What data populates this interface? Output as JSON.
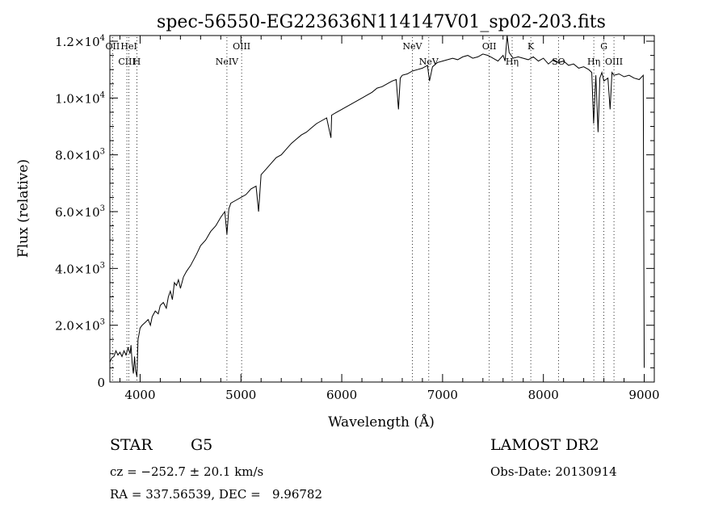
{
  "chart_data": {
    "type": "line",
    "title": "spec-56550-EG223636N114147V01_sp02-203.fits",
    "xlabel": "Wavelength (Å)",
    "ylabel": "Flux (relative)",
    "xlim": [
      3700,
      9100
    ],
    "ylim": [
      0,
      12200
    ],
    "x_ticks": [
      4000,
      5000,
      6000,
      7000,
      8000,
      9000
    ],
    "x_tick_labels": [
      "4000",
      "5000",
      "6000",
      "7000",
      "8000",
      "9000"
    ],
    "y_ticks": [
      0,
      2000,
      4000,
      6000,
      8000,
      10000,
      12000
    ],
    "y_tick_labels": [
      {
        "base": "0",
        "exp": ""
      },
      {
        "base": "2.0×10",
        "exp": "3"
      },
      {
        "base": "4.0×10",
        "exp": "3"
      },
      {
        "base": "6.0×10",
        "exp": "3"
      },
      {
        "base": "8.0×10",
        "exp": "3"
      },
      {
        "base": "1.0×10",
        "exp": "4"
      },
      {
        "base": "1.2×10",
        "exp": "4"
      }
    ],
    "grid": false,
    "legend": "none",
    "series": [
      {
        "x": [
          3700,
          3720,
          3740,
          3760,
          3780,
          3800,
          3820,
          3840,
          3860,
          3880,
          3900,
          3910,
          3920,
          3933,
          3945,
          3955,
          3968,
          3980,
          3990,
          4000,
          4020,
          4050,
          4080,
          4102,
          4120,
          4150,
          4180,
          4200,
          4230,
          4260,
          4280,
          4300,
          4320,
          4340,
          4360,
          4380,
          4400,
          4430,
          4460,
          4500,
          4530,
          4560,
          4600,
          4650,
          4700,
          4750,
          4800,
          4840,
          4861,
          4880,
          4900,
          4950,
          5000,
          5050,
          5100,
          5150,
          5175,
          5200,
          5250,
          5300,
          5350,
          5400,
          5450,
          5500,
          5550,
          5600,
          5650,
          5700,
          5750,
          5800,
          5850,
          5893,
          5900,
          5950,
          6000,
          6050,
          6100,
          6150,
          6200,
          6250,
          6300,
          6350,
          6400,
          6450,
          6500,
          6540,
          6563,
          6580,
          6600,
          6650,
          6700,
          6750,
          6800,
          6850,
          6870,
          6900,
          6950,
          7000,
          7050,
          7100,
          7150,
          7200,
          7250,
          7300,
          7350,
          7400,
          7450,
          7500,
          7550,
          7600,
          7620,
          7640,
          7660,
          7700,
          7750,
          7800,
          7850,
          7900,
          7950,
          8000,
          8050,
          8100,
          8150,
          8200,
          8250,
          8300,
          8350,
          8400,
          8450,
          8480,
          8498,
          8520,
          8542,
          8560,
          8580,
          8600,
          8640,
          8662,
          8680,
          8700,
          8750,
          8800,
          8850,
          8900,
          8950,
          8990,
          9000
        ],
        "y": [
          700,
          850,
          900,
          1100,
          950,
          1050,
          900,
          1100,
          950,
          1200,
          1000,
          1300,
          700,
          300,
          900,
          400,
          200,
          1500,
          1700,
          1900,
          2000,
          2100,
          2200,
          2000,
          2300,
          2500,
          2400,
          2700,
          2800,
          2600,
          3000,
          3200,
          2900,
          3500,
          3400,
          3600,
          3300,
          3700,
          3900,
          4100,
          4300,
          4500,
          4800,
          5000,
          5300,
          5500,
          5800,
          6000,
          5200,
          6100,
          6300,
          6400,
          6500,
          6600,
          6800,
          6900,
          6000,
          7300,
          7500,
          7700,
          7900,
          8000,
          8200,
          8400,
          8550,
          8700,
          8800,
          8950,
          9100,
          9200,
          9300,
          8600,
          9400,
          9500,
          9600,
          9700,
          9800,
          9900,
          10000,
          10100,
          10200,
          10350,
          10400,
          10500,
          10600,
          10650,
          9600,
          10700,
          10800,
          10850,
          10950,
          11000,
          11050,
          11150,
          10600,
          11100,
          11250,
          11300,
          11350,
          11400,
          11350,
          11450,
          11500,
          11400,
          11450,
          11550,
          11500,
          11400,
          11300,
          11500,
          11300,
          12200,
          11600,
          11400,
          11450,
          11400,
          11350,
          11450,
          11300,
          11400,
          11200,
          11350,
          11250,
          11300,
          11150,
          11200,
          11050,
          11100,
          11000,
          10900,
          9100,
          10800,
          8800,
          10700,
          10900,
          10600,
          10700,
          9600,
          10900,
          10800,
          10850,
          10750,
          10800,
          10700,
          10650,
          10800,
          500
        ]
      }
    ],
    "line_markers": [
      {
        "label": "OII",
        "x": 3727,
        "row": "top"
      },
      {
        "label": "HeI",
        "x": 3889,
        "row": "top"
      },
      {
        "label": "CIII",
        "x": 3869,
        "row": "bottom"
      },
      {
        "label": "H",
        "x": 3968,
        "row": "bottom"
      },
      {
        "label": "OIII",
        "x": 5007,
        "row": "top"
      },
      {
        "label": "NeIV",
        "x": 4861,
        "row": "bottom"
      },
      {
        "label": "NeV",
        "x": 6700,
        "row": "top"
      },
      {
        "label": "NeV",
        "x": 6863,
        "row": "bottom"
      },
      {
        "label": "OII",
        "x": 7463,
        "row": "top"
      },
      {
        "label": "Hη",
        "x": 7690,
        "row": "bottom"
      },
      {
        "label": "K",
        "x": 7875,
        "row": "top"
      },
      {
        "label": "SO",
        "x": 8150,
        "row": "bottom"
      },
      {
        "label": "G",
        "x": 8600,
        "row": "top"
      },
      {
        "label": "OIII",
        "x": 8700,
        "row": "bottom"
      },
      {
        "label": "Hη",
        "x": 8500,
        "row": "bottom"
      }
    ]
  },
  "info": {
    "object_class": "STAR",
    "subclass": "G5",
    "survey": "LAMOST DR2",
    "redshift": "cz = −252.7 ± 20.1 km/s",
    "obs_date": "Obs-Date: 20130914",
    "coords": "RA = 337.56539, DEC =   9.96782"
  }
}
